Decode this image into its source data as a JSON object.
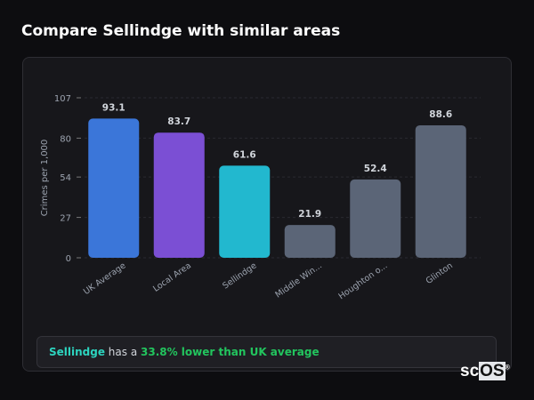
{
  "header": {
    "title": "Compare Sellindge with similar areas"
  },
  "chart_data": {
    "type": "bar",
    "categories": [
      "UK Average",
      "Local Area",
      "Sellindge",
      "Middle Win...",
      "Houghton o...",
      "Glinton"
    ],
    "values": [
      93.1,
      83.7,
      61.6,
      21.9,
      52.4,
      88.6
    ],
    "value_labels": [
      "93.1",
      "83.7",
      "61.6",
      "21.9",
      "52.4",
      "88.6"
    ],
    "colors": [
      "#3b76d9",
      "#7b4fd4",
      "#22b8cf",
      "#5b6577",
      "#5b6577",
      "#5b6577"
    ],
    "ylabel": "Crimes per 1,000",
    "yticks": [
      0,
      27,
      54,
      80,
      107
    ],
    "ylim": [
      0,
      107
    ],
    "grid": true,
    "xlabel": "",
    "title": ""
  },
  "summary": {
    "area": "Sellindge",
    "middle": " has a ",
    "comparison": "33.8% lower than UK average"
  },
  "watermark": {
    "text1": "sc",
    "text2": "OS",
    "mark": "®"
  }
}
